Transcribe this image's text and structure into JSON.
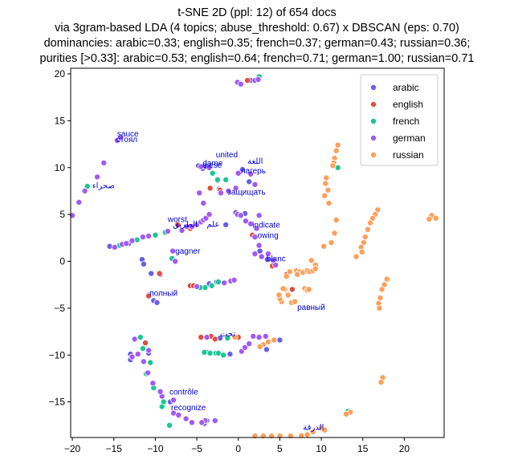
{
  "chart_data": {
    "type": "scatter",
    "title_lines": [
      "t-SNE 2D (ppl: 12) of 654 docs",
      "via 3gram-based LDA (4 topics; abuse_threshold: 0.67) x DBSCAN (eps: 0.70)",
      "dominancies: arabic=0.33; english=0.35; french=0.37; german=0.43; russian=0.36;",
      "purities [>0.33]: arabic=0.53; english=0.64; french=0.71; german=1.00; russian=0.71"
    ],
    "xlim": [
      -20.2,
      24.8
    ],
    "ylim": [
      -18.8,
      20.6
    ],
    "xticks": [
      -20,
      -15,
      -10,
      -5,
      0,
      5,
      10,
      15,
      20
    ],
    "xtick_labels": [
      "−20",
      "−15",
      "−10",
      "−5",
      "0",
      "5",
      "10",
      "15",
      "20"
    ],
    "yticks": [
      -15,
      -10,
      -5,
      0,
      5,
      10,
      15,
      20
    ],
    "ytick_labels": [
      "−15",
      "−10",
      "−5",
      "0",
      "5",
      "10",
      "15",
      "20"
    ],
    "legend_position": "top-right",
    "series": [
      {
        "name": "arabic",
        "color": "#6a5ee8",
        "points": [
          [
            -15.5,
            1.6
          ],
          [
            -13.2,
            1.9
          ],
          [
            -11.6,
            0.2
          ],
          [
            -11.4,
            -0.3
          ],
          [
            -10.5,
            -1.3
          ],
          [
            -9.4,
            -1.4
          ],
          [
            -10.8,
            -3.6
          ],
          [
            -10.2,
            -4.2
          ],
          [
            -9.8,
            -4.4
          ],
          [
            -4.8,
            10.2
          ],
          [
            -4.3,
            9.9
          ],
          [
            -3.9,
            10.1
          ],
          [
            -2.5,
            8.6
          ],
          [
            -2.3,
            7.7
          ],
          [
            0.5,
            9.8
          ],
          [
            1.3,
            8.5
          ],
          [
            0.8,
            5.1
          ],
          [
            2.6,
            1.1
          ],
          [
            3.5,
            0.2
          ],
          [
            1.5,
            19.3
          ],
          [
            -3.5,
            -2.4
          ],
          [
            -2.6,
            -2.2
          ],
          [
            -2.2,
            -8.2
          ],
          [
            -3.8,
            -9.7
          ],
          [
            -1.0,
            -9.9
          ],
          [
            -11.2,
            -8.8
          ],
          [
            -10.8,
            -9.8
          ],
          [
            -13.0,
            -10.5
          ],
          [
            -13.0,
            -9.9
          ],
          [
            -8.2,
            -15.0
          ],
          [
            -3.8,
            -17.0
          ],
          [
            -4.1,
            -17.3
          ],
          [
            3.4,
            -9.4
          ],
          [
            5.0,
            -8.4
          ],
          [
            -1.5,
            3.9
          ],
          [
            -0.3,
            5.2
          ]
        ]
      },
      {
        "name": "english",
        "color": "#e04e3e",
        "points": [
          [
            -5.8,
            -2.6
          ],
          [
            -5.4,
            -2.6
          ],
          [
            -4.5,
            -8.1
          ],
          [
            -3.3,
            -8.0
          ],
          [
            -2.8,
            -8.3
          ],
          [
            -10.8,
            -3.7
          ],
          [
            -2.2,
            7.6
          ],
          [
            -3.4,
            7.8
          ],
          [
            1.7,
            2.8
          ],
          [
            1.1,
            19.3
          ],
          [
            -5.8,
            3.5
          ],
          [
            -11.2,
            -8.7
          ],
          [
            0.0,
            -8.1
          ],
          [
            5.8,
            -1.4
          ],
          [
            6.5,
            -3.0
          ],
          [
            -9.5,
            -1.3
          ],
          [
            -7.3,
            3.9
          ],
          [
            4.1,
            -0.5
          ]
        ]
      },
      {
        "name": "french",
        "color": "#19c795",
        "points": [
          [
            -18.2,
            8.0
          ],
          [
            -14.3,
            1.7
          ],
          [
            -12.2,
            2.3
          ],
          [
            -10.0,
            2.8
          ],
          [
            -8.0,
            0.3
          ],
          [
            -8.8,
            3.1
          ],
          [
            -2.5,
            8.7
          ],
          [
            -3.1,
            9.4
          ],
          [
            -1.5,
            8.7
          ],
          [
            -4.0,
            -2.8
          ],
          [
            -3.2,
            -2.6
          ],
          [
            -1.3,
            -8.2
          ],
          [
            -2.7,
            -9.8
          ],
          [
            -4.1,
            -9.7
          ],
          [
            -11.8,
            -8.1
          ],
          [
            -11.1,
            -12.0
          ],
          [
            -10.2,
            -13.5
          ],
          [
            -9.2,
            -15.5
          ],
          [
            -11.5,
            -9.3
          ],
          [
            -10.6,
            -10.8
          ],
          [
            -4.6,
            -2.8
          ],
          [
            -2.4,
            -2.2
          ],
          [
            2.5,
            19.7
          ],
          [
            -9.0,
            -15.0
          ],
          [
            -8.3,
            -17.5
          ],
          [
            12.0,
            10.0
          ],
          [
            13.2,
            -16.0
          ],
          [
            -2.4,
            -9.8
          ],
          [
            -1.8,
            -10.0
          ],
          [
            -3.4,
            -9.8
          ]
        ]
      },
      {
        "name": "german",
        "color": "#a35af2",
        "points": [
          [
            -20.0,
            4.9
          ],
          [
            -19.2,
            6.3
          ],
          [
            -18.5,
            7.5
          ],
          [
            -17.0,
            9.0
          ],
          [
            -16.2,
            10.5
          ],
          [
            -14.6,
            12.9
          ],
          [
            -14.2,
            13.2
          ],
          [
            -14.9,
            1.5
          ],
          [
            -14.0,
            1.8
          ],
          [
            -13.5,
            1.9
          ],
          [
            -12.8,
            2.2
          ],
          [
            -11.5,
            2.6
          ],
          [
            -10.8,
            2.7
          ],
          [
            -8.5,
            3.2
          ],
          [
            -7.9,
            1.1
          ],
          [
            -7.6,
            0.0
          ],
          [
            -6.8,
            3.3
          ],
          [
            -6.2,
            3.7
          ],
          [
            -5.6,
            3.7
          ],
          [
            -5.0,
            3.9
          ],
          [
            -4.5,
            4.2
          ],
          [
            -4.2,
            4.4
          ],
          [
            -3.9,
            4.6
          ],
          [
            -3.5,
            5.0
          ],
          [
            -4.5,
            10.1
          ],
          [
            -3.5,
            10.0
          ],
          [
            -4.2,
            6.2
          ],
          [
            -4.7,
            7.3
          ],
          [
            -2.1,
            7.3
          ],
          [
            -1.2,
            7.5
          ],
          [
            -0.3,
            7.8
          ],
          [
            0.0,
            9.4
          ],
          [
            1.5,
            9.3
          ],
          [
            2.0,
            8.2
          ],
          [
            -0.1,
            5.0
          ],
          [
            0.3,
            4.9
          ],
          [
            0.9,
            4.3
          ],
          [
            1.5,
            4.0
          ],
          [
            2.5,
            4.9
          ],
          [
            2.2,
            3.5
          ],
          [
            2.0,
            2.6
          ],
          [
            2.5,
            1.7
          ],
          [
            2.0,
            0.8
          ],
          [
            2.8,
            0.5
          ],
          [
            3.6,
            0.8
          ],
          [
            4.2,
            0.1
          ],
          [
            4.5,
            -0.4
          ],
          [
            -0.1,
            19.1
          ],
          [
            0.3,
            18.9
          ],
          [
            2.0,
            19.3
          ],
          [
            2.4,
            19.4
          ],
          [
            1.8,
            -8.0
          ],
          [
            2.5,
            -8.1
          ],
          [
            3.3,
            -8.0
          ],
          [
            -7.8,
            -14.8
          ],
          [
            -7.8,
            -16.2
          ],
          [
            -6.3,
            -16.8
          ],
          [
            -5.6,
            -17.2
          ],
          [
            -9.2,
            -14.4
          ],
          [
            -10.3,
            -13.0
          ],
          [
            -10.9,
            -11.9
          ],
          [
            -11.4,
            -10.7
          ],
          [
            -12.1,
            -9.9
          ],
          [
            -12.5,
            -8.3
          ],
          [
            -9.4,
            -13.9
          ],
          [
            -7.2,
            -16.4
          ],
          [
            -10.8,
            -9.5
          ],
          [
            -5.0,
            -2.7
          ],
          [
            -1.7,
            -2.3
          ],
          [
            -0.9,
            -2.1
          ],
          [
            -0.5,
            -2.0
          ],
          [
            -3.8,
            -8.1
          ],
          [
            0.4,
            -9.6
          ],
          [
            0.8,
            -9.2
          ],
          [
            1.3,
            -8.8
          ],
          [
            -4.0,
            -17.0
          ],
          [
            -12.8,
            -10.2
          ],
          [
            -2.8,
            -17.0
          ],
          [
            -4.4,
            -17.2
          ]
        ]
      },
      {
        "name": "russian",
        "color": "#ff9f59",
        "points": [
          [
            12.0,
            12.4
          ],
          [
            11.8,
            11.8
          ],
          [
            11.6,
            11.0
          ],
          [
            11.5,
            10.5
          ],
          [
            11.4,
            10.2
          ],
          [
            10.5,
            8.3
          ],
          [
            10.6,
            8.9
          ],
          [
            10.8,
            7.6
          ],
          [
            10.4,
            7.0
          ],
          [
            10.9,
            6.2
          ],
          [
            11.8,
            4.4
          ],
          [
            11.6,
            3.0
          ],
          [
            11.2,
            2.0
          ],
          [
            10.3,
            1.6
          ],
          [
            8.8,
            0.1
          ],
          [
            9.3,
            -0.4
          ],
          [
            7.0,
            -1.0
          ],
          [
            7.4,
            -1.1
          ],
          [
            7.8,
            -1.2
          ],
          [
            8.3,
            -1.0
          ],
          [
            8.6,
            -1.1
          ],
          [
            9.0,
            -1.0
          ],
          [
            9.3,
            -0.8
          ],
          [
            6.2,
            -1.1
          ],
          [
            5.8,
            -1.6
          ],
          [
            5.6,
            -3.0
          ],
          [
            6.0,
            -3.6
          ],
          [
            6.4,
            -4.4
          ],
          [
            6.8,
            -4.3
          ],
          [
            5.2,
            -4.3
          ],
          [
            5.0,
            -4.0
          ],
          [
            4.9,
            -3.6
          ],
          [
            8.0,
            -2.9
          ],
          [
            8.3,
            -3.1
          ],
          [
            8.5,
            -3.0
          ],
          [
            16.8,
            5.5
          ],
          [
            16.5,
            5.0
          ],
          [
            16.2,
            4.6
          ],
          [
            15.9,
            4.1
          ],
          [
            15.6,
            3.4
          ],
          [
            15.3,
            2.6
          ],
          [
            15.1,
            2.0
          ],
          [
            14.8,
            1.5
          ],
          [
            14.9,
            1.0
          ],
          [
            14.2,
            0.5
          ],
          [
            17.9,
            -1.9
          ],
          [
            17.6,
            -2.5
          ],
          [
            17.3,
            -3.0
          ],
          [
            17.1,
            -3.9
          ],
          [
            16.9,
            -4.5
          ],
          [
            17.0,
            -5.0
          ],
          [
            17.4,
            -12.4
          ],
          [
            17.2,
            -12.9
          ],
          [
            23.3,
            4.9
          ],
          [
            23.8,
            4.6
          ],
          [
            23.0,
            4.5
          ],
          [
            13.5,
            -16.1
          ],
          [
            13.0,
            -16.3
          ],
          [
            10.0,
            -17.8
          ],
          [
            10.4,
            -18.0
          ],
          [
            9.0,
            -18.2
          ],
          [
            8.3,
            -18.5
          ],
          [
            7.6,
            -18.6
          ],
          [
            6.3,
            -18.8
          ],
          [
            5.0,
            -18.9
          ],
          [
            4.0,
            -19.0
          ],
          [
            3.0,
            -19.0
          ],
          [
            2.0,
            -19.1
          ],
          [
            4.3,
            -8.4
          ],
          [
            3.6,
            -8.6
          ],
          [
            3.0,
            -8.9
          ],
          [
            2.6,
            -9.1
          ],
          [
            7.1,
            -1.4
          ],
          [
            5.4,
            -2.9
          ],
          [
            -0.4,
            -8.1
          ]
        ]
      }
    ],
    "annotations": [
      {
        "text": "sauce",
        "x": -14.6,
        "y": 13.3
      },
      {
        "text": "стоял",
        "x": -14.7,
        "y": 12.7
      },
      {
        "text": "صحراء",
        "x": -17.6,
        "y": 7.8
      },
      {
        "text": "united",
        "x": -2.7,
        "y": 11.1
      },
      {
        "text": "dame",
        "x": -4.3,
        "y": 10.2
      },
      {
        "text": "diese",
        "x": -4.3,
        "y": 10.0
      },
      {
        "text": "اللغة",
        "x": 1.1,
        "y": 10.4
      },
      {
        "text": "лагерь",
        "x": 0.3,
        "y": 9.4
      },
      {
        "text": "защищать",
        "x": -1.3,
        "y": 7.1
      },
      {
        "text": "worst",
        "x": -8.5,
        "y": 4.2
      },
      {
        "text": "الطريق",
        "x": -7.9,
        "y": 3.7
      },
      {
        "text": "علم",
        "x": -3.8,
        "y": 3.7
      },
      {
        "text": "indicate",
        "x": 1.7,
        "y": 3.6
      },
      {
        "text": "owing",
        "x": 2.3,
        "y": 2.5
      },
      {
        "text": "gagner",
        "x": -7.6,
        "y": 0.8
      },
      {
        "text": "blanc",
        "x": 3.4,
        "y": 0.0
      },
      {
        "text": "полный",
        "x": -10.7,
        "y": -3.7
      },
      {
        "text": "равный",
        "x": 7.1,
        "y": -5.2
      },
      {
        "text": "تحت",
        "x": -2.2,
        "y": -8.0
      },
      {
        "text": "contrôle",
        "x": -8.3,
        "y": -14.2
      },
      {
        "text": "recognize",
        "x": -8.1,
        "y": -15.9
      },
      {
        "text": "الدرقة",
        "x": 7.8,
        "y": -18.0
      }
    ]
  }
}
